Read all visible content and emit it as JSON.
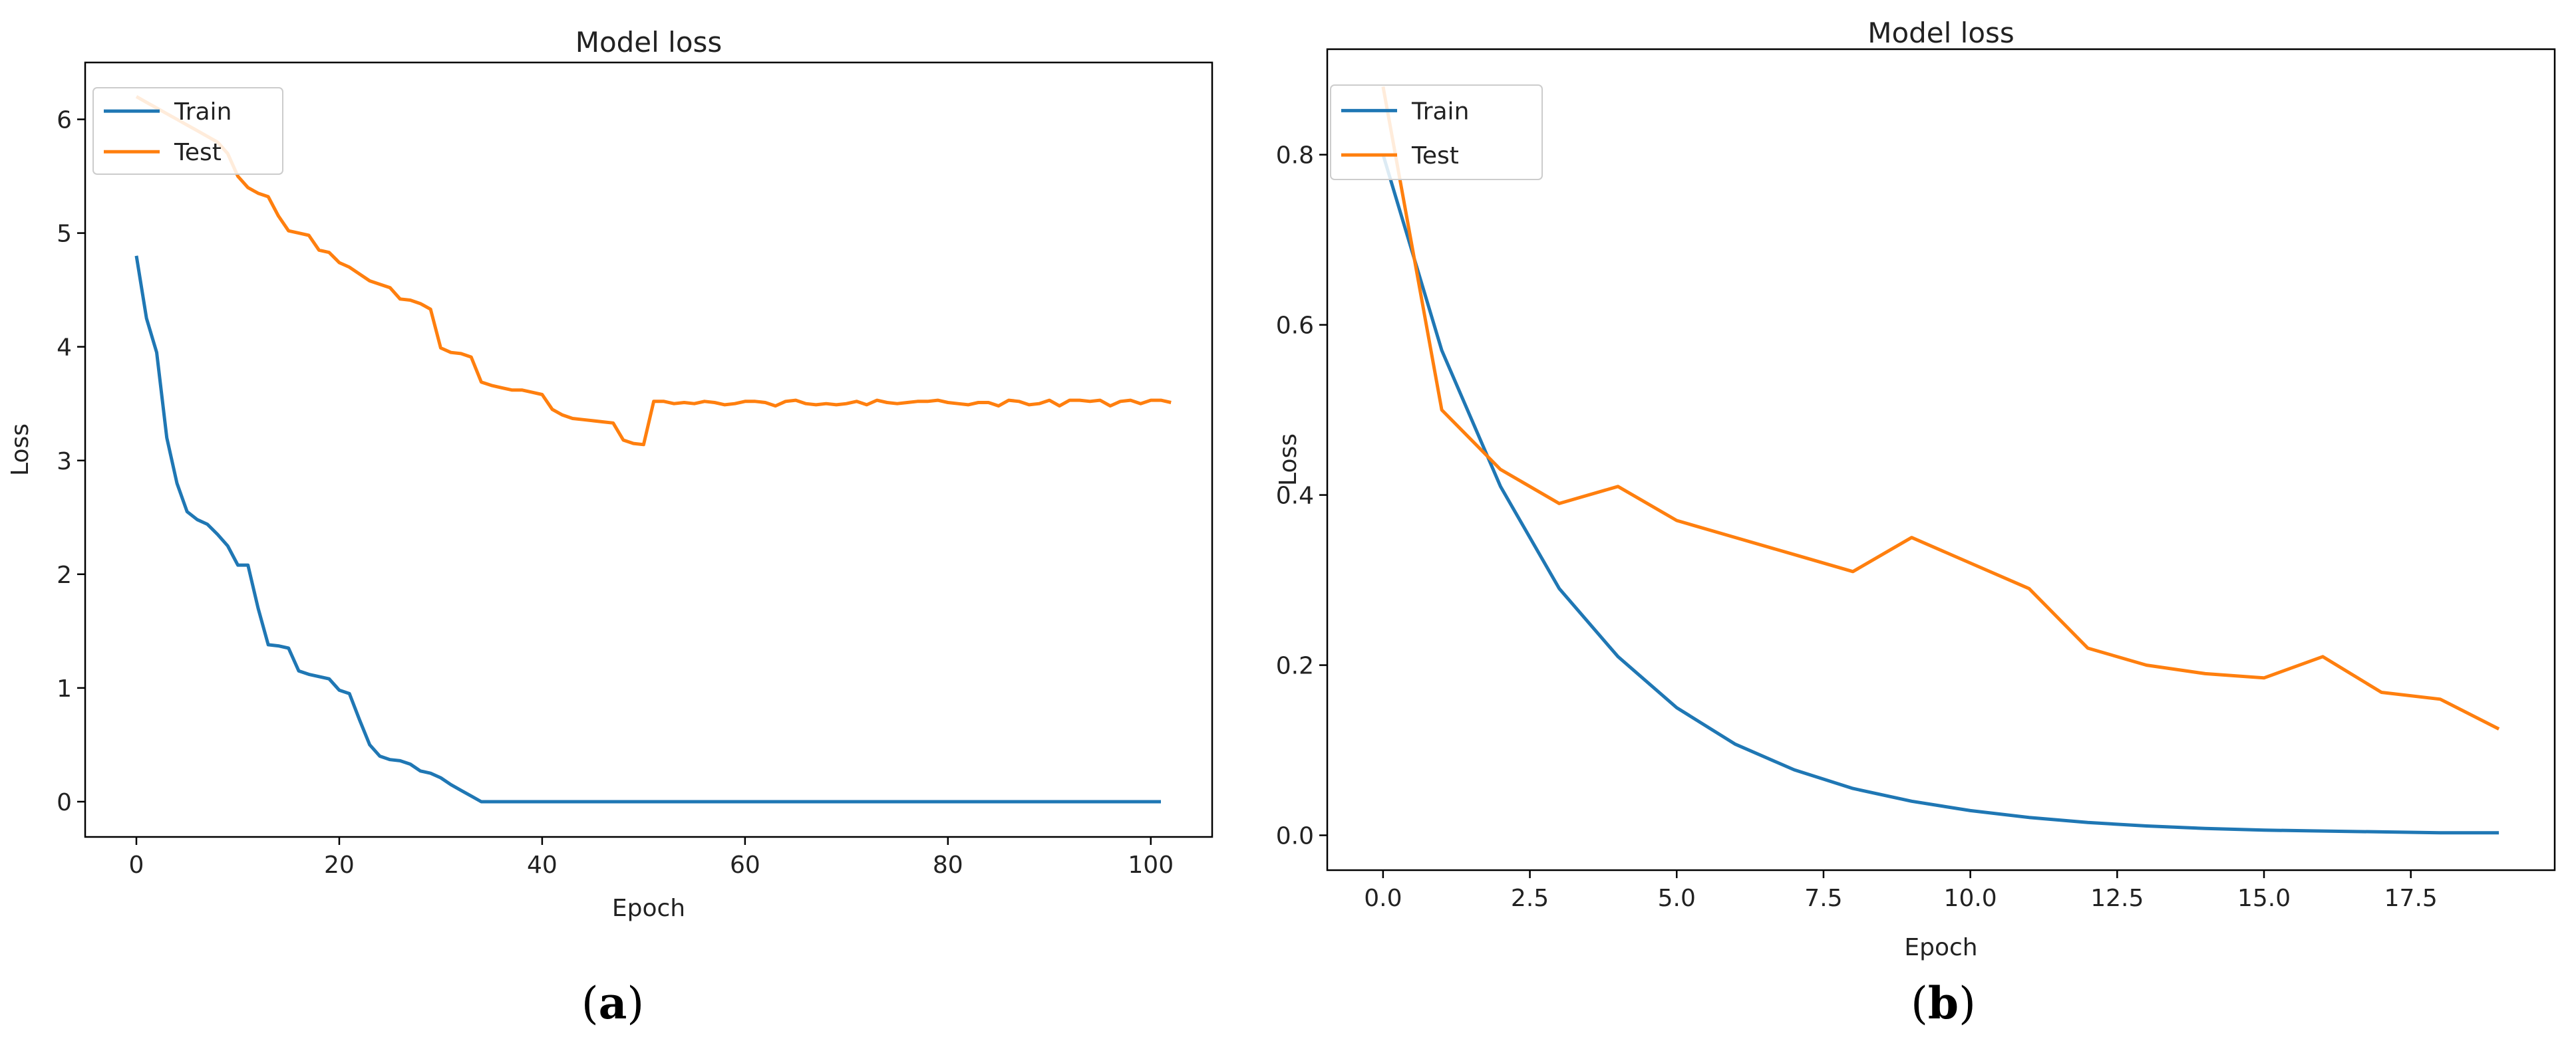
{
  "chart_data": [
    {
      "type": "line",
      "panel_label": "(a)",
      "panel_letter": "a",
      "title": "Model loss",
      "xlabel": "Epoch",
      "ylabel": "Loss",
      "xlim": [
        -5.05,
        106.05
      ],
      "ylim": [
        -0.31,
        6.5
      ],
      "xticks": [
        0,
        20,
        40,
        60,
        80,
        100
      ],
      "xtick_labels": [
        "0",
        "20",
        "40",
        "60",
        "80",
        "100"
      ],
      "yticks": [
        0,
        1,
        2,
        3,
        4,
        5,
        6
      ],
      "ytick_labels": [
        "0",
        "1",
        "2",
        "3",
        "4",
        "5",
        "6"
      ],
      "grid": false,
      "legend_position": "upper-left",
      "series": [
        {
          "name": "Train",
          "color": "#1f77b4",
          "x_start": 0,
          "values": [
            4.8,
            4.25,
            3.95,
            3.2,
            2.8,
            2.55,
            2.48,
            2.44,
            2.35,
            2.25,
            2.08,
            2.08,
            1.7,
            1.38,
            1.37,
            1.35,
            1.15,
            1.12,
            1.1,
            1.08,
            0.98,
            0.95,
            0.72,
            0.5,
            0.4,
            0.37,
            0.36,
            0.33,
            0.27,
            0.25,
            0.21,
            0.15,
            0.1,
            0.05,
            0.0,
            0,
            0,
            0,
            0,
            0,
            0,
            0,
            0,
            0,
            0,
            0,
            0,
            0,
            0,
            0,
            0,
            0,
            0,
            0,
            0,
            0,
            0,
            0,
            0,
            0,
            0,
            0,
            0,
            0,
            0,
            0,
            0,
            0,
            0,
            0,
            0,
            0,
            0,
            0,
            0,
            0,
            0,
            0,
            0,
            0,
            0,
            0,
            0,
            0,
            0,
            0,
            0,
            0,
            0,
            0,
            0,
            0,
            0,
            0,
            0,
            0,
            0,
            0,
            0,
            0,
            0,
            0
          ]
        },
        {
          "name": "Test",
          "color": "#ff7f0e",
          "x_start": 0,
          "values": [
            6.2,
            6.15,
            6.1,
            6.05,
            6.0,
            5.95,
            5.9,
            5.85,
            5.8,
            5.7,
            5.5,
            5.4,
            5.35,
            5.32,
            5.15,
            5.02,
            5.0,
            4.98,
            4.85,
            4.83,
            4.74,
            4.7,
            4.64,
            4.58,
            4.55,
            4.52,
            4.42,
            4.41,
            4.38,
            4.33,
            3.99,
            3.95,
            3.94,
            3.91,
            3.69,
            3.66,
            3.64,
            3.62,
            3.62,
            3.6,
            3.58,
            3.45,
            3.4,
            3.37,
            3.36,
            3.35,
            3.34,
            3.33,
            3.18,
            3.15,
            3.14,
            3.52,
            3.52,
            3.5,
            3.51,
            3.5,
            3.52,
            3.51,
            3.49,
            3.5,
            3.52,
            3.52,
            3.51,
            3.48,
            3.52,
            3.53,
            3.5,
            3.49,
            3.5,
            3.49,
            3.5,
            3.52,
            3.49,
            3.53,
            3.51,
            3.5,
            3.51,
            3.52,
            3.52,
            3.53,
            3.51,
            3.5,
            3.49,
            3.51,
            3.51,
            3.48,
            3.53,
            3.52,
            3.49,
            3.5,
            3.53,
            3.48,
            3.53,
            3.53,
            3.52,
            3.53,
            3.48,
            3.52,
            3.53,
            3.5,
            3.53,
            3.53,
            3.51
          ]
        }
      ]
    },
    {
      "type": "line",
      "panel_label": "(b)",
      "panel_letter": "b",
      "title": "Model loss",
      "xlabel": "Epoch",
      "ylabel": "Loss",
      "xlim": [
        -0.95,
        19.95
      ],
      "ylim": [
        -0.041,
        0.924
      ],
      "xticks": [
        0,
        2.5,
        5,
        7.5,
        10,
        12.5,
        15,
        17.5
      ],
      "xtick_labels": [
        "0.0",
        "2.5",
        "5.0",
        "7.5",
        "10.0",
        "12.5",
        "15.0",
        "17.5"
      ],
      "yticks": [
        0,
        0.2,
        0.4,
        0.6,
        0.8
      ],
      "ytick_labels": [
        "0.0",
        "0.2",
        "0.4",
        "0.6",
        "0.8"
      ],
      "grid": false,
      "legend_position": "upper-left",
      "series": [
        {
          "name": "Train",
          "color": "#1f77b4",
          "x_start": 0,
          "values": [
            0.8,
            0.57,
            0.41,
            0.29,
            0.21,
            0.15,
            0.107,
            0.077,
            0.055,
            0.04,
            0.029,
            0.021,
            0.015,
            0.011,
            0.008,
            0.006,
            0.005,
            0.004,
            0.003,
            0.003
          ]
        },
        {
          "name": "Test",
          "color": "#ff7f0e",
          "x_start": 0,
          "values": [
            0.88,
            0.5,
            0.43,
            0.39,
            0.41,
            0.37,
            0.35,
            0.33,
            0.31,
            0.35,
            0.32,
            0.29,
            0.22,
            0.2,
            0.19,
            0.185,
            0.21,
            0.168,
            0.16,
            0.125
          ]
        }
      ]
    }
  ]
}
